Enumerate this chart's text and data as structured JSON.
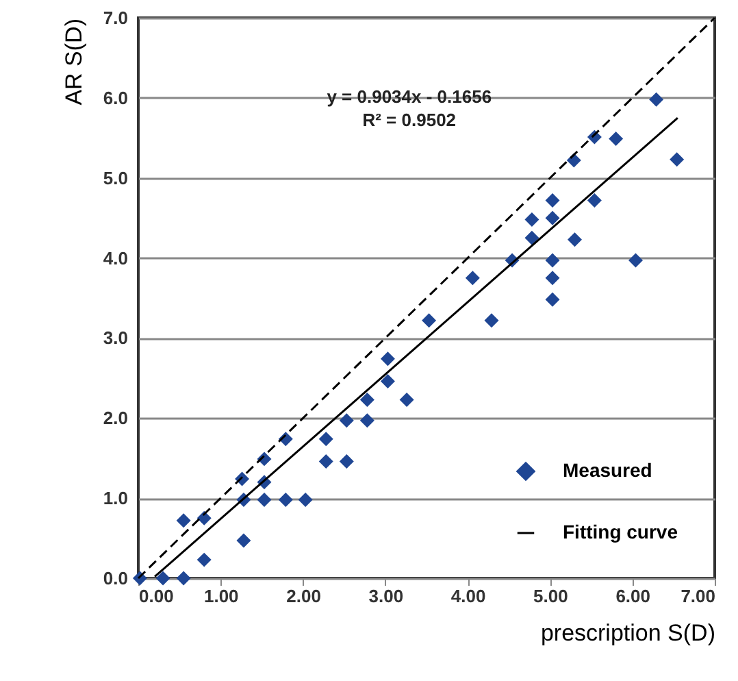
{
  "chart_data": {
    "type": "scatter",
    "xlabel": "prescription S(D)",
    "ylabel": "AR S(D)",
    "annotations": [
      "y = 0.9034x - 0.1656",
      "R² = 0.9502"
    ],
    "xlim": [
      0,
      7
    ],
    "ylim": [
      0,
      7
    ],
    "xticks": [
      {
        "value": 0,
        "label": "0.00"
      },
      {
        "value": 1,
        "label": "1.00"
      },
      {
        "value": 2,
        "label": "2.00"
      },
      {
        "value": 3,
        "label": "3.00"
      },
      {
        "value": 4,
        "label": "4.00"
      },
      {
        "value": 5,
        "label": "5.00"
      },
      {
        "value": 6,
        "label": "6.00"
      },
      {
        "value": 7,
        "label": "7.00"
      }
    ],
    "yticks": [
      {
        "value": 0,
        "label": "0.0"
      },
      {
        "value": 1,
        "label": "1.0"
      },
      {
        "value": 2,
        "label": "2.0"
      },
      {
        "value": 3,
        "label": "3.0"
      },
      {
        "value": 4,
        "label": "4.0"
      },
      {
        "value": 5,
        "label": "5.0"
      },
      {
        "value": 6,
        "label": "6.0"
      },
      {
        "value": 7,
        "label": "7.0"
      }
    ],
    "grid": "y",
    "legend": "bottom right",
    "series": [
      {
        "name": "Measured",
        "marker": "diamond",
        "color": "#1f4694",
        "x": [
          0.02,
          0.3,
          0.55,
          0.55,
          0.8,
          0.8,
          1.28,
          1.26,
          1.28,
          1.53,
          1.53,
          1.53,
          1.79,
          1.79,
          2.03,
          2.28,
          2.28,
          2.53,
          2.53,
          2.78,
          2.78,
          3.03,
          3.03,
          3.26,
          3.53,
          4.29,
          4.06,
          4.54,
          4.78,
          4.78,
          5.03,
          5.03,
          5.03,
          5.03,
          5.03,
          5.3,
          5.54,
          5.29,
          5.54,
          5.8,
          6.29,
          6.54,
          6.04
        ],
        "values": [
          0,
          0,
          0,
          0.72,
          0.75,
          0.23,
          0.47,
          1.24,
          0.98,
          1.49,
          1.2,
          0.98,
          0.98,
          1.74,
          0.98,
          1.74,
          1.46,
          1.46,
          1.97,
          1.97,
          2.23,
          2.74,
          2.46,
          2.23,
          3.22,
          3.22,
          3.75,
          3.97,
          4.25,
          4.48,
          4.72,
          4.5,
          3.97,
          3.75,
          3.48,
          4.23,
          4.72,
          5.22,
          5.51,
          5.49,
          5.98,
          5.23,
          3.97
        ]
      },
      {
        "name": "Fitting curve",
        "type": "line",
        "color": "#000000",
        "line_style": "solid",
        "x": [
          0.2,
          6.55
        ],
        "values": [
          0.02,
          5.75
        ]
      },
      {
        "type": "line",
        "color": "#000000",
        "line_style": "dashed",
        "x": [
          0,
          7
        ],
        "values": [
          0,
          7
        ]
      }
    ]
  }
}
